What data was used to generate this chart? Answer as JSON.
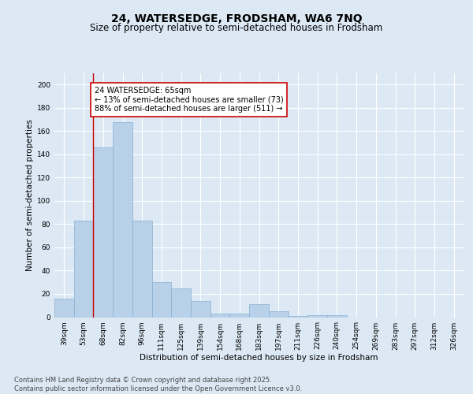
{
  "title": "24, WATERSEDGE, FRODSHAM, WA6 7NQ",
  "subtitle": "Size of property relative to semi-detached houses in Frodsham",
  "xlabel": "Distribution of semi-detached houses by size in Frodsham",
  "ylabel": "Number of semi-detached properties",
  "categories": [
    "39sqm",
    "53sqm",
    "68sqm",
    "82sqm",
    "96sqm",
    "111sqm",
    "125sqm",
    "139sqm",
    "154sqm",
    "168sqm",
    "183sqm",
    "197sqm",
    "211sqm",
    "226sqm",
    "240sqm",
    "254sqm",
    "269sqm",
    "283sqm",
    "297sqm",
    "312sqm",
    "326sqm"
  ],
  "values": [
    16,
    83,
    146,
    168,
    83,
    30,
    25,
    14,
    3,
    3,
    11,
    5,
    1,
    2,
    2,
    0,
    0,
    0,
    0,
    0,
    0
  ],
  "bar_color": "#b8d0e8",
  "bar_edge_color": "#8ab0d0",
  "red_line_x": 1.5,
  "annotation_text": "24 WATERSEDGE: 65sqm\n← 13% of semi-detached houses are smaller (73)\n88% of semi-detached houses are larger (511) →",
  "ylim": [
    0,
    210
  ],
  "yticks": [
    0,
    20,
    40,
    60,
    80,
    100,
    120,
    140,
    160,
    180,
    200
  ],
  "background_color": "#dce9f5",
  "grid_color": "#ffffff",
  "annotation_box_facecolor": "#ffffff",
  "annotation_box_edgecolor": "#cc0000",
  "title_fontsize": 10,
  "subtitle_fontsize": 8.5,
  "axis_label_fontsize": 7.5,
  "tick_fontsize": 6.5,
  "annotation_fontsize": 7,
  "footer_fontsize": 6,
  "footer": "Contains HM Land Registry data © Crown copyright and database right 2025.\nContains public sector information licensed under the Open Government Licence v3.0."
}
